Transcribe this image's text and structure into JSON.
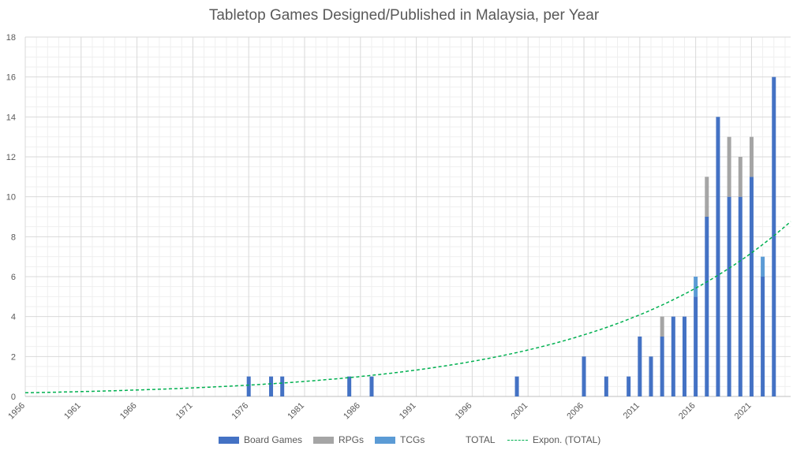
{
  "chart_data": {
    "type": "bar",
    "stacked": true,
    "title": "Tabletop Games Designed/Published in Malaysia, per Year",
    "xlabel": "",
    "ylabel": "",
    "x_range": [
      1956,
      2024
    ],
    "x_tick_labels": [
      "1956",
      "1961",
      "1966",
      "1971",
      "1976",
      "1981",
      "1986",
      "1991",
      "1996",
      "2001",
      "2006",
      "2011",
      "2016",
      "2021"
    ],
    "ylim": [
      0,
      18
    ],
    "y_tick_labels": [
      "0",
      "2",
      "4",
      "6",
      "8",
      "10",
      "12",
      "14",
      "16",
      "18"
    ],
    "grid": true,
    "legend_position": "bottom",
    "years": [
      1976,
      1978,
      1979,
      1985,
      1987,
      2000,
      2006,
      2008,
      2010,
      2011,
      2012,
      2013,
      2014,
      2015,
      2016,
      2017,
      2018,
      2019,
      2020,
      2021,
      2022,
      2023
    ],
    "series": [
      {
        "name": "Board Games",
        "color": "#4472c4",
        "values": [
          1,
          1,
          1,
          1,
          1,
          1,
          2,
          1,
          1,
          3,
          2,
          3,
          4,
          4,
          5,
          9,
          14,
          10,
          10,
          11,
          6,
          16
        ]
      },
      {
        "name": "RPGs",
        "color": "#a5a5a5",
        "values": [
          0,
          0,
          0,
          0,
          0,
          0,
          0,
          0,
          0,
          0,
          0,
          1,
          0,
          0,
          0,
          2,
          0,
          3,
          2,
          2,
          0,
          0
        ]
      },
      {
        "name": "TCGs",
        "color": "#5b9bd5",
        "values": [
          0,
          0,
          0,
          0,
          0,
          0,
          0,
          0,
          0,
          0,
          0,
          0,
          0,
          0,
          1,
          0,
          0,
          0,
          0,
          0,
          1,
          0
        ]
      },
      {
        "name": "TOTAL",
        "color": "#ffffff",
        "values": [
          1,
          1,
          1,
          1,
          1,
          1,
          2,
          1,
          1,
          3,
          2,
          4,
          4,
          4,
          6,
          11,
          14,
          13,
          12,
          13,
          7,
          16
        ]
      }
    ],
    "trendline": {
      "name": "Expon. (TOTAL)",
      "type": "exponential",
      "color": "#00b050",
      "style": "dashed"
    }
  }
}
